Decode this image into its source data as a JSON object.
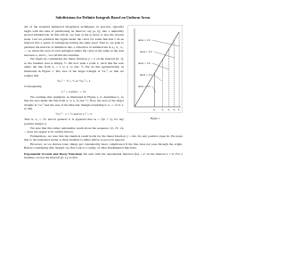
{
  "header": {
    "title": "Subdivisions for Definite Integrals Based on Uniform Areas"
  },
  "figure": {
    "area_labels": [
      "Area = 1/2",
      "Area = 1/2",
      "Area = 1/2",
      "Area = 1/2",
      "Area = 1/2"
    ],
    "x_labels": [
      "x₀",
      "x₁",
      "x₂",
      "x₃",
      "x₄"
    ],
    "caption": "Figure 1"
  },
  "paragraphs": [
    "All of the standard numerical integration techniques, in practice, typically begin with the idea of partitioning an interval, say [a, b], into a uniformly spaced subintervals. In this article, we look at the is more or less the reverse issue. Can we partition the region under the curve for some function f on an interval into a series of subregions having the same area? That is, we seek to partition the interval of definition into a collection of subintervals at x₀, x₁, x₂, ..., xₙ where the area of each subregion under the curve is the same as the area between x₀ and x₁. we call this the baseline.",
    "We begin by considering the linear function y = x on the interval [0, 1], so the baseline area is simply ½. We now seek a point x₁ such that the area under the line from x₀ = 1 to x₁ is also ½. We do this geometrically, as illustrated in Figure 1. The area of the larger triangle is ½x₁², so that we require that"
  ],
  "equation_1": "½x₁² − ½ = ½  or  ½x₁² = 1.",
  "consequently": "Consequently,",
  "equation_2": "x₁² = 2  and  x₁ = √2.",
  "paragraphs_2": [
    "We continue this argument, as illustrated in Figure 1, to determine x₂ so that the area under the line from x₁ to x₂ is also ½. Now, the area of the larger triangle is ½x₂² and the area of the mid-size triangle extending to x₁ = √2 is 1, so that"
  ],
  "equation_3": "½x₂² − 1 = ½  and so  x₂² = 3.",
  "paragraphs_3": [
    "That is, x₂ = √3, and in general, it is apparent that xₙ = √(n + 1), for any positive integer n.",
    "We note that this rather remarkable result about the sequence √2, √3, √4, ... does not appear to be widely known.",
    "Furthermore, we note that the identical result holds for the linear function y = mx, for any positive slope m. We leave that to the interested reader or their students to either derive or prove in general.",
    "However, as we discuss later, things get considerably more complicated if the line does not pass through the origin. Before considering this, though, we first look at a variety of other fundamental functions."
  ],
  "section": {
    "heading": "Exponential Growth and Decay Functions",
    "text": "We start with the exponential function f(x) = eˣ on the interval x ≥ 0. For a baseline, we use the interval [0, 1], so that"
  }
}
